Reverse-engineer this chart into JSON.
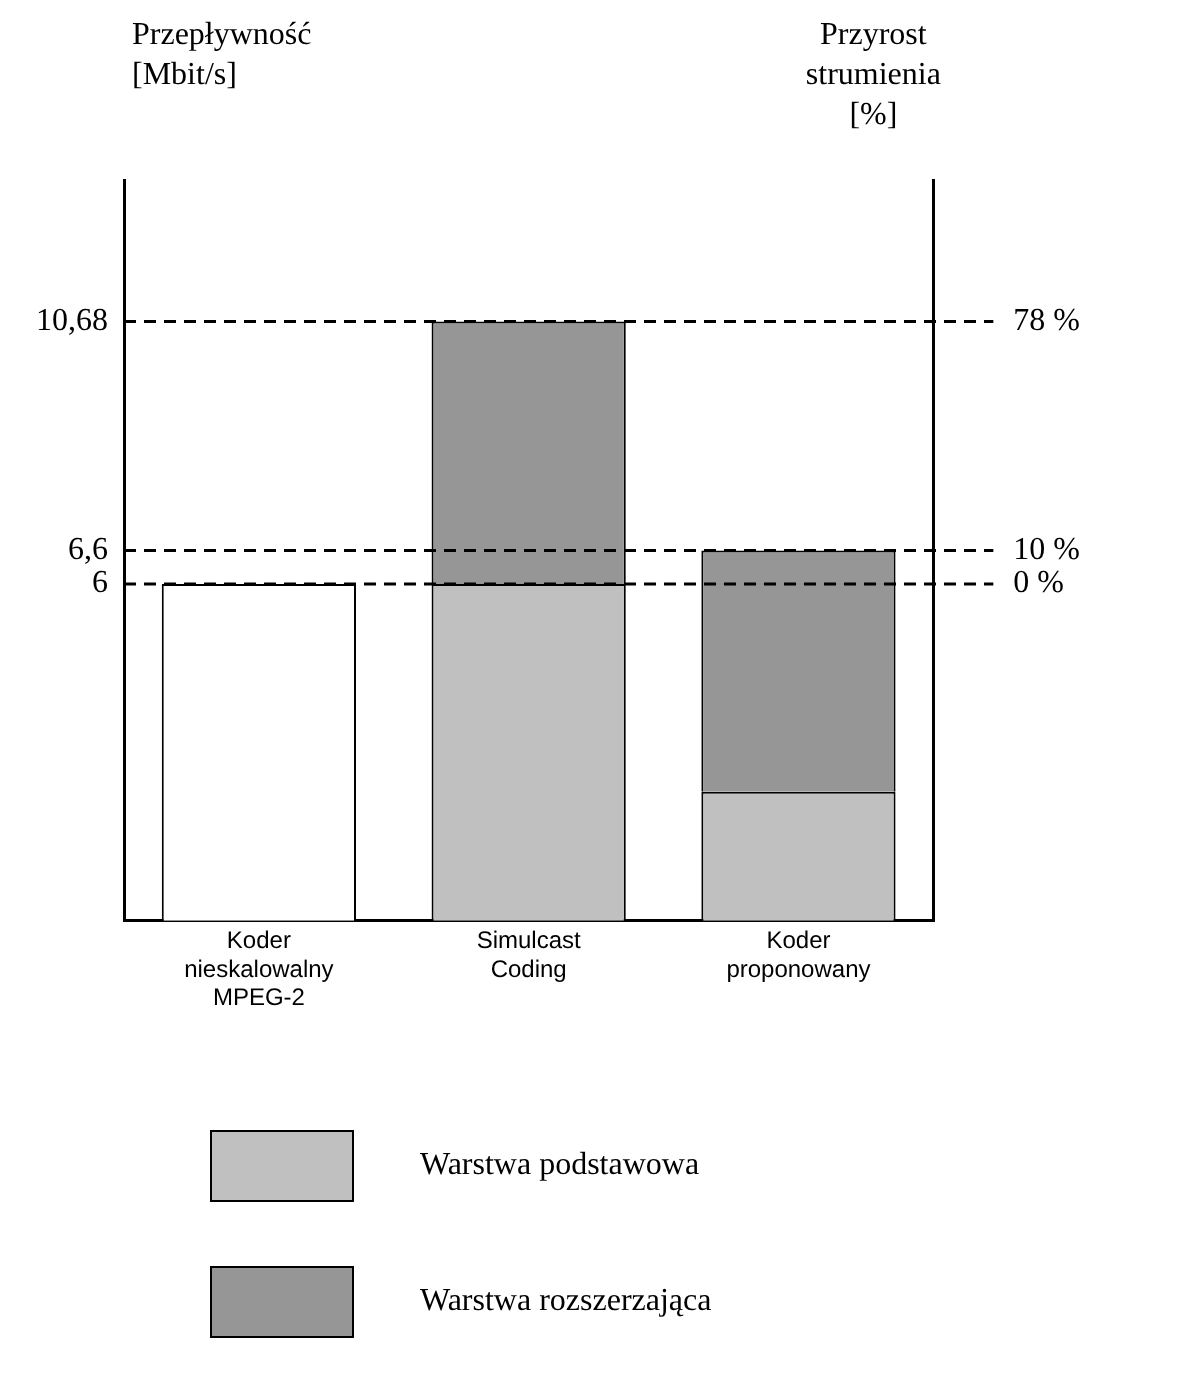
{
  "chart_data": {
    "type": "bar",
    "stacked": true,
    "categories": [
      "Koder nieskalowalny MPEG-2",
      "Simulcast Coding",
      "Koder proponowany"
    ],
    "ylabel": "Przepływność [Mbit/s]",
    "y2label": "Przyrost strumienia [%]",
    "series": [
      {
        "color": "#ffffff",
        "values": [
          6,
          null,
          null
        ]
      },
      {
        "name": "Warstwa podstawowa",
        "color": "#c0c0c0",
        "values": [
          null,
          6,
          2.3
        ]
      },
      {
        "name": "Warstwa rozszerzająca",
        "color": "#969696",
        "values": [
          null,
          4.68,
          4.3
        ]
      }
    ],
    "ylim": [
      0,
      13.2
    ],
    "yticks": [
      6,
      {
        "value": 6.6,
        "label": "6,6"
      },
      {
        "value": 10.68,
        "label": "10,68"
      }
    ],
    "y2lim": [
      -100,
      120
    ],
    "y2ticks": [
      {
        "value": 0,
        "label": "0 %"
      },
      {
        "value": 10,
        "label": "10 %"
      },
      {
        "value": 78,
        "label": "78 %"
      }
    ],
    "ref_lines": [
      {
        "axis": "y",
        "value": 6,
        "line_style": "dashed",
        "color": "#000000"
      },
      {
        "axis": "y",
        "value": 6.6,
        "line_style": "dashed",
        "color": "#000000"
      },
      {
        "axis": "y",
        "value": 10.68,
        "line_style": "dashed",
        "color": "#000000"
      }
    ],
    "grid": false,
    "legend": "bottom"
  }
}
